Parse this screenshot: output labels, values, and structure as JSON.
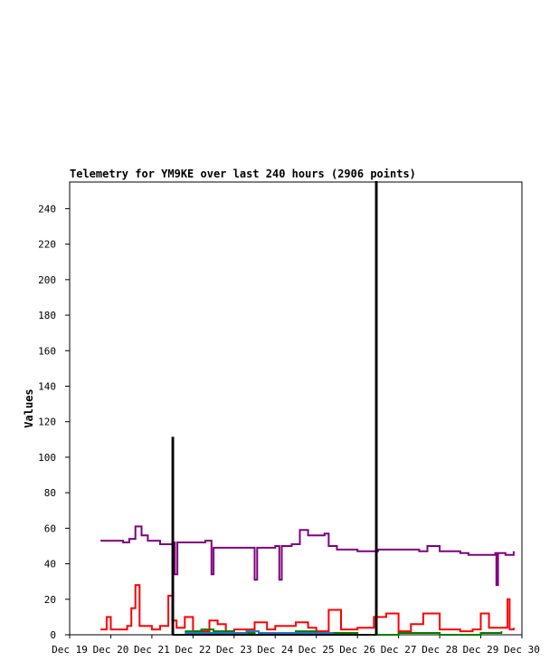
{
  "chart_data": {
    "type": "line",
    "title": "Telemetry for YM9KE over last 240 hours (2906 points)",
    "xlabel": "",
    "ylabel": "Values",
    "ylim": [
      0,
      255
    ],
    "xlim": [
      "Dec 19",
      "Dec 30"
    ],
    "x_ticks": [
      "Dec 19",
      "Dec 20",
      "Dec 21",
      "Dec 22",
      "Dec 23",
      "Dec 24",
      "Dec 25",
      "Dec 26",
      "Dec 27",
      "Dec 28",
      "Dec 29",
      "Dec 30"
    ],
    "y_ticks": [
      0,
      20,
      40,
      60,
      80,
      100,
      120,
      140,
      160,
      180,
      200,
      220,
      240
    ],
    "grid": false,
    "legend": "none",
    "series": [
      {
        "color": "#800080",
        "points": [
          [
            19.75,
            53
          ],
          [
            20.0,
            53
          ],
          [
            20.3,
            52
          ],
          [
            20.45,
            54
          ],
          [
            20.6,
            61
          ],
          [
            20.75,
            56
          ],
          [
            20.9,
            53
          ],
          [
            21.2,
            51
          ],
          [
            21.5,
            52
          ],
          [
            21.56,
            34
          ],
          [
            21.62,
            52
          ],
          [
            22.0,
            52
          ],
          [
            22.3,
            53
          ],
          [
            22.45,
            34
          ],
          [
            22.5,
            49
          ],
          [
            23.0,
            49
          ],
          [
            23.3,
            49
          ],
          [
            23.5,
            31
          ],
          [
            23.56,
            49
          ],
          [
            24.0,
            50
          ],
          [
            24.1,
            31
          ],
          [
            24.16,
            50
          ],
          [
            24.4,
            51
          ],
          [
            24.6,
            59
          ],
          [
            24.8,
            56
          ],
          [
            25.0,
            56
          ],
          [
            25.2,
            57
          ],
          [
            25.3,
            50
          ],
          [
            25.5,
            48
          ],
          [
            26.0,
            47
          ],
          [
            26.5,
            48
          ],
          [
            27.0,
            48
          ],
          [
            27.5,
            47
          ],
          [
            27.7,
            50
          ],
          [
            28.0,
            47
          ],
          [
            28.5,
            46
          ],
          [
            28.7,
            45
          ],
          [
            29.0,
            45
          ],
          [
            29.35,
            46
          ],
          [
            29.38,
            28
          ],
          [
            29.42,
            46
          ],
          [
            29.6,
            45
          ],
          [
            29.8,
            47
          ]
        ]
      },
      {
        "color": "#ff0000",
        "points": [
          [
            19.75,
            3
          ],
          [
            19.9,
            10
          ],
          [
            20.0,
            3
          ],
          [
            20.4,
            5
          ],
          [
            20.5,
            15
          ],
          [
            20.6,
            28
          ],
          [
            20.7,
            5
          ],
          [
            21.0,
            3
          ],
          [
            21.2,
            5
          ],
          [
            21.4,
            22
          ],
          [
            21.5,
            8
          ],
          [
            21.6,
            4
          ],
          [
            21.8,
            10
          ],
          [
            22.0,
            2
          ],
          [
            22.4,
            8
          ],
          [
            22.6,
            6
          ],
          [
            22.8,
            2
          ],
          [
            23.0,
            3
          ],
          [
            23.5,
            7
          ],
          [
            23.8,
            3
          ],
          [
            24.0,
            5
          ],
          [
            24.5,
            7
          ],
          [
            24.8,
            4
          ],
          [
            25.0,
            2
          ],
          [
            25.3,
            14
          ],
          [
            25.6,
            3
          ],
          [
            26.0,
            4
          ],
          [
            26.4,
            10
          ],
          [
            26.7,
            12
          ],
          [
            27.0,
            2
          ],
          [
            27.3,
            6
          ],
          [
            27.6,
            12
          ],
          [
            28.0,
            3
          ],
          [
            28.5,
            2
          ],
          [
            28.8,
            3
          ],
          [
            29.0,
            12
          ],
          [
            29.2,
            4
          ],
          [
            29.5,
            4
          ],
          [
            29.65,
            20
          ],
          [
            29.7,
            3
          ],
          [
            29.8,
            4
          ]
        ]
      },
      {
        "color": "#008000",
        "points": [
          [
            21.8,
            2
          ],
          [
            22.2,
            3
          ],
          [
            22.5,
            2
          ],
          [
            23.0,
            1
          ],
          [
            23.5,
            0
          ],
          [
            24.0,
            1
          ],
          [
            24.5,
            2
          ],
          [
            25.0,
            1
          ],
          [
            26.0,
            0
          ],
          [
            27.0,
            1
          ],
          [
            28.0,
            0
          ],
          [
            29.0,
            1
          ],
          [
            29.5,
            2
          ]
        ]
      },
      {
        "color": "#1e78c8",
        "points": [
          [
            21.8,
            1
          ],
          [
            22.2,
            1
          ],
          [
            22.6,
            1
          ],
          [
            23.0,
            1
          ],
          [
            23.3,
            2
          ],
          [
            23.6,
            1
          ],
          [
            24.0,
            1
          ],
          [
            24.6,
            1
          ],
          [
            25.0,
            1
          ],
          [
            25.4,
            0
          ]
        ]
      },
      {
        "color": "#000000",
        "points": [
          [
            21.5,
            0
          ],
          [
            21.5,
            111
          ],
          [
            21.52,
            111
          ],
          [
            21.52,
            0
          ],
          [
            26.45,
            0
          ],
          [
            26.45,
            255
          ],
          [
            26.47,
            255
          ],
          [
            26.47,
            0
          ]
        ]
      }
    ]
  }
}
